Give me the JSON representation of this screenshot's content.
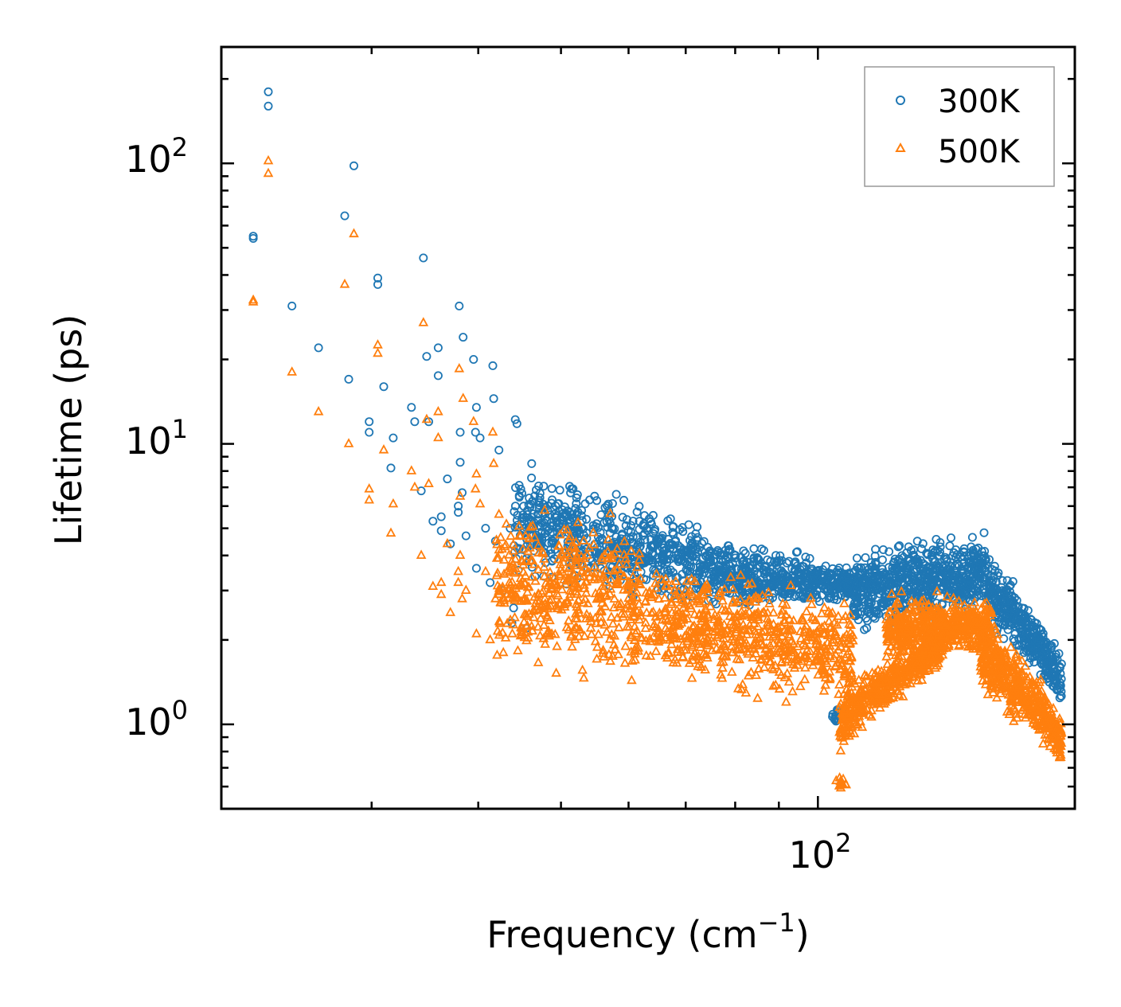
{
  "chart_data": {
    "type": "scatter",
    "scale": {
      "x": "log",
      "y": "log"
    },
    "xlabel": "Frequency (cm",
    "xlabel_sup": "−1",
    "xlabel_close": ")",
    "ylabel": "Lifetime (ps)",
    "xlim": [
      20,
      200
    ],
    "ylim": [
      0.5,
      260
    ],
    "x_major_ticks": [
      {
        "value": 100,
        "base": "10",
        "exp": "2"
      }
    ],
    "y_major_ticks": [
      {
        "value": 1,
        "base": "10",
        "exp": "0"
      },
      {
        "value": 10,
        "base": "10",
        "exp": "1"
      },
      {
        "value": 100,
        "base": "10",
        "exp": "2"
      }
    ],
    "legend_position": "top-right",
    "series": [
      {
        "name": "300K",
        "marker": "circle",
        "color": "#1f77b4",
        "points": [
          [
            21.8,
            54
          ],
          [
            21.8,
            55
          ],
          [
            22.7,
            180
          ],
          [
            22.7,
            160
          ],
          [
            24.2,
            31
          ],
          [
            26.0,
            22
          ],
          [
            27.9,
            65
          ],
          [
            28.2,
            17
          ],
          [
            28.6,
            98
          ],
          [
            29.8,
            12
          ],
          [
            29.8,
            11
          ],
          [
            30.5,
            37
          ],
          [
            30.5,
            39
          ],
          [
            31.0,
            16
          ],
          [
            31.6,
            8.2
          ],
          [
            31.8,
            10.5
          ],
          [
            33.4,
            13.5
          ],
          [
            33.7,
            12
          ],
          [
            34.3,
            6.8
          ],
          [
            34.5,
            46
          ],
          [
            34.8,
            20.5
          ],
          [
            35.0,
            12
          ],
          [
            35.4,
            5.3
          ],
          [
            35.9,
            22
          ],
          [
            35.9,
            17.5
          ],
          [
            36.2,
            5.5
          ],
          [
            36.2,
            4.9
          ],
          [
            36.8,
            7.5
          ],
          [
            37.1,
            4.4
          ],
          [
            37.9,
            5.7
          ],
          [
            37.9,
            6.0
          ],
          [
            38.0,
            31
          ],
          [
            38.1,
            11
          ],
          [
            38.1,
            8.6
          ],
          [
            38.3,
            6.7
          ],
          [
            38.4,
            24
          ],
          [
            38.7,
            4.7
          ],
          [
            39.5,
            20
          ],
          [
            39.7,
            11
          ],
          [
            39.8,
            3.6
          ],
          [
            39.8,
            13.5
          ],
          [
            40.2,
            10.5
          ],
          [
            40.8,
            5.0
          ],
          [
            41.3,
            3.2
          ],
          [
            41.6,
            19
          ],
          [
            41.7,
            14.5
          ],
          [
            41.9,
            4.5
          ],
          [
            42.3,
            9.5
          ],
          [
            42.8,
            3.0
          ],
          [
            43.6,
            5.0
          ],
          [
            43.8,
            2.3
          ],
          [
            44.0,
            2.6
          ],
          [
            44.2,
            12.2
          ],
          [
            44.4,
            11.8
          ],
          [
            44.6,
            4.2
          ],
          [
            45.0,
            5.3
          ],
          [
            45.5,
            2.2
          ],
          [
            45.9,
            3.8
          ],
          [
            46.2,
            8.5
          ]
        ]
      },
      {
        "name": "500K",
        "marker": "triangle",
        "color": "#ff7f0e",
        "points": [
          [
            21.8,
            32
          ],
          [
            21.8,
            32.5
          ],
          [
            22.7,
            102
          ],
          [
            22.7,
            92
          ],
          [
            24.2,
            18
          ],
          [
            26.0,
            13
          ],
          [
            27.9,
            37
          ],
          [
            28.2,
            10
          ],
          [
            28.6,
            56
          ],
          [
            29.8,
            6.3
          ],
          [
            29.8,
            6.9
          ],
          [
            30.5,
            21
          ],
          [
            30.5,
            22.5
          ],
          [
            31.0,
            9.5
          ],
          [
            31.6,
            4.8
          ],
          [
            31.8,
            6.1
          ],
          [
            33.4,
            8.0
          ],
          [
            33.7,
            7.0
          ],
          [
            34.3,
            4.0
          ],
          [
            34.5,
            27
          ],
          [
            34.8,
            12.2
          ],
          [
            35.0,
            7.2
          ],
          [
            35.4,
            3.1
          ],
          [
            35.9,
            13
          ],
          [
            35.9,
            10.5
          ],
          [
            36.2,
            3.2
          ],
          [
            36.2,
            2.9
          ],
          [
            36.8,
            4.4
          ],
          [
            37.1,
            2.5
          ],
          [
            37.9,
            3.5
          ],
          [
            37.9,
            3.2
          ],
          [
            38.0,
            18.5
          ],
          [
            38.1,
            6.5
          ],
          [
            38.1,
            4.0
          ],
          [
            38.3,
            2.8
          ],
          [
            38.4,
            14.5
          ],
          [
            38.7,
            3.0
          ],
          [
            39.5,
            12
          ],
          [
            39.7,
            6.9
          ],
          [
            39.8,
            2.1
          ],
          [
            39.8,
            7.8
          ],
          [
            40.2,
            6.1
          ],
          [
            40.8,
            3.5
          ],
          [
            41.3,
            2.0
          ],
          [
            41.6,
            11
          ],
          [
            41.7,
            8.5
          ],
          [
            41.9,
            2.8
          ],
          [
            42.3,
            5.6
          ],
          [
            42.8,
            1.8
          ]
        ]
      }
    ],
    "clusters": [
      {
        "series": "300K",
        "count": 700,
        "x": [
          44,
          80
        ],
        "y_start": [
          3.0,
          9.0
        ],
        "y_end": [
          2.4,
          4.8
        ]
      },
      {
        "series": "300K",
        "count": 420,
        "x": [
          80,
          110
        ],
        "y_start": [
          2.4,
          4.8
        ],
        "y_end": [
          2.6,
          3.8
        ]
      },
      {
        "series": "300K",
        "count": 650,
        "x": [
          110,
          158
        ],
        "y_start": [
          1.9,
          4.6
        ],
        "y_end": [
          2.4,
          5.2
        ]
      },
      {
        "series": "300K",
        "count": 360,
        "x": [
          158,
          193
        ],
        "y_start": [
          2.1,
          4.2
        ],
        "y_end": [
          1.1,
          1.8
        ]
      },
      {
        "series": "300K",
        "count": 18,
        "x": [
          104,
          108
        ],
        "y_start": [
          1.0,
          1.15
        ],
        "y_end": [
          1.0,
          1.15
        ]
      },
      {
        "series": "500K",
        "count": 420,
        "x": [
          42,
          60
        ],
        "y_start": [
          1.3,
          7.0
        ],
        "y_end": [
          1.3,
          6.5
        ]
      },
      {
        "series": "500K",
        "count": 700,
        "x": [
          60,
          110
        ],
        "y_start": [
          1.3,
          4.5
        ],
        "y_end": [
          1.1,
          2.9
        ]
      },
      {
        "series": "500K",
        "count": 480,
        "x": [
          106,
          140
        ],
        "y_start": [
          0.72,
          1.4
        ],
        "y_end": [
          1.5,
          2.3
        ]
      },
      {
        "series": "500K",
        "count": 560,
        "x": [
          120,
          160
        ],
        "y_start": [
          1.6,
          3.0
        ],
        "y_end": [
          1.7,
          3.0
        ]
      },
      {
        "series": "500K",
        "count": 480,
        "x": [
          155,
          193
        ],
        "y_start": [
          1.2,
          2.6
        ],
        "y_end": [
          0.68,
          1.1
        ]
      },
      {
        "series": "500K",
        "count": 12,
        "x": [
          105,
          108
        ],
        "y_start": [
          0.58,
          0.66
        ],
        "y_end": [
          0.58,
          0.66
        ]
      }
    ]
  }
}
